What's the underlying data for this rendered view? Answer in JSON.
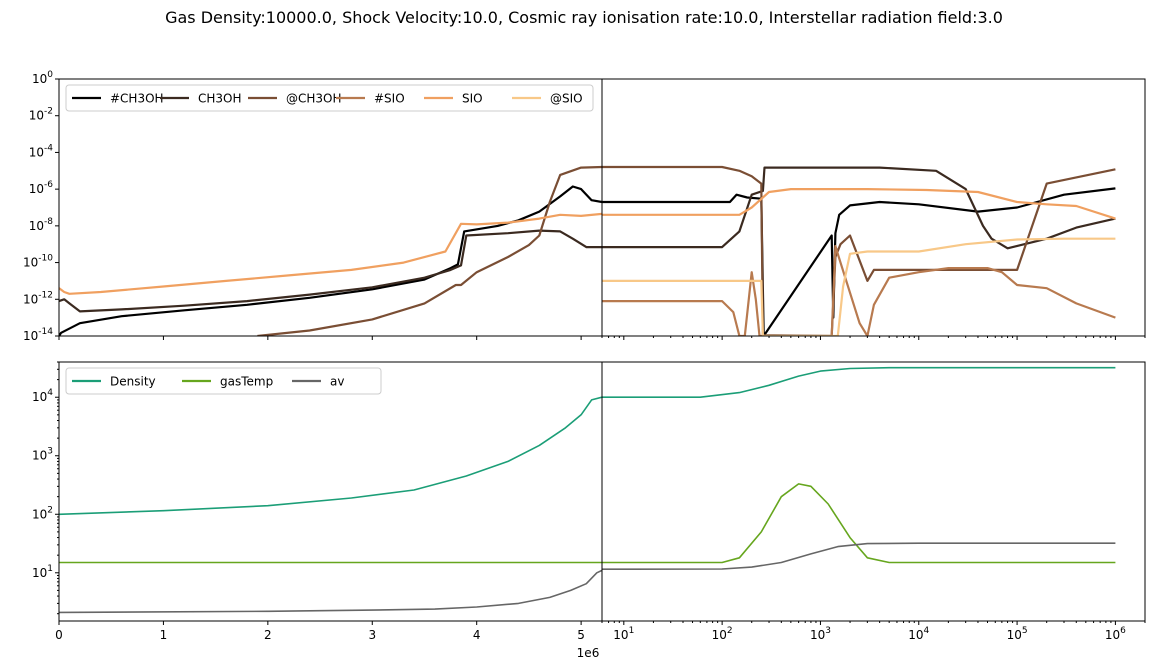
{
  "suptitle": "Gas Density:10000.0, Shock Velocity:10.0, Cosmic ray ionisation rate:10.0, Interstellar radiation field:3.0",
  "chart_data": [
    {
      "panel": "top-left",
      "type": "line",
      "xscale": "linear",
      "yscale": "log",
      "xlim": [
        0,
        5200000.0
      ],
      "ylim": [
        1e-14,
        1
      ],
      "yticks": [
        "10^0",
        "10^-2",
        "10^-4",
        "10^-6",
        "10^-8",
        "10^-10",
        "10^-12",
        "10^-14"
      ],
      "legend_placement": "top-left",
      "series": [
        {
          "name": "#CH3OH",
          "color": "#000000",
          "points": [
            [
              0,
              1e-14
            ],
            [
              0.02,
              1.5e-14
            ],
            [
              0.2,
              5e-14
            ],
            [
              0.6,
              1.2e-13
            ],
            [
              1.2,
              2.5e-13
            ],
            [
              1.8,
              5e-13
            ],
            [
              2.4,
              1.2e-12
            ],
            [
              3.0,
              3.5e-12
            ],
            [
              3.5,
              1.2e-11
            ],
            [
              3.75,
              5e-11
            ],
            [
              3.82,
              8e-11
            ],
            [
              3.88,
              5e-09
            ],
            [
              4.2,
              1e-08
            ],
            [
              4.4,
              2e-08
            ],
            [
              4.6,
              6e-08
            ],
            [
              4.8,
              4e-07
            ],
            [
              4.92,
              1.4e-06
            ],
            [
              5.0,
              1e-06
            ],
            [
              5.1,
              2.5e-07
            ],
            [
              5.2,
              2e-07
            ]
          ]
        },
        {
          "name": "CH3OH",
          "color": "#3b2a20",
          "points": [
            [
              0,
              8e-13
            ],
            [
              0.05,
              1e-12
            ],
            [
              0.1,
              6e-13
            ],
            [
              0.2,
              2.2e-13
            ],
            [
              0.6,
              2.8e-13
            ],
            [
              1.2,
              4.5e-13
            ],
            [
              1.8,
              8e-13
            ],
            [
              2.4,
              1.8e-12
            ],
            [
              3.0,
              4.5e-12
            ],
            [
              3.5,
              1.5e-11
            ],
            [
              3.75,
              4e-11
            ],
            [
              3.85,
              7e-11
            ],
            [
              3.9,
              3e-09
            ],
            [
              4.3,
              4e-09
            ],
            [
              4.6,
              5.5e-09
            ],
            [
              4.8,
              5e-09
            ],
            [
              4.92,
              2e-09
            ],
            [
              5.05,
              7e-10
            ],
            [
              5.2,
              7e-10
            ]
          ]
        },
        {
          "name": "@CH3OH",
          "color": "#7a4e34",
          "points": [
            [
              1.9,
              1e-14
            ],
            [
              2.4,
              2e-14
            ],
            [
              3.0,
              8e-14
            ],
            [
              3.5,
              6e-13
            ],
            [
              3.8,
              6e-12
            ],
            [
              3.85,
              6e-12
            ],
            [
              4.0,
              3e-11
            ],
            [
              4.3,
              2e-10
            ],
            [
              4.5,
              9e-10
            ],
            [
              4.6,
              3e-09
            ],
            [
              4.7,
              2e-07
            ],
            [
              4.8,
              6e-06
            ],
            [
              5.0,
              1.5e-05
            ],
            [
              5.2,
              1.6e-05
            ]
          ]
        },
        {
          "name": "#SIO",
          "color": "#b87a4f",
          "points": []
        },
        {
          "name": "SIO",
          "color": "#f0a060",
          "points": [
            [
              0,
              4e-12
            ],
            [
              0.05,
              2.5e-12
            ],
            [
              0.1,
              2e-12
            ],
            [
              0.4,
              2.5e-12
            ],
            [
              1.0,
              5e-12
            ],
            [
              1.6,
              1e-11
            ],
            [
              2.2,
              2e-11
            ],
            [
              2.8,
              4e-11
            ],
            [
              3.3,
              1e-10
            ],
            [
              3.7,
              4e-10
            ],
            [
              3.85,
              1.3e-08
            ],
            [
              4.0,
              1.2e-08
            ],
            [
              4.3,
              1.5e-08
            ],
            [
              4.6,
              2.5e-08
            ],
            [
              4.8,
              4e-08
            ],
            [
              5.0,
              3.5e-08
            ],
            [
              5.2,
              4.5e-08
            ]
          ]
        },
        {
          "name": "@SIO",
          "color": "#f8c888",
          "points": []
        }
      ]
    },
    {
      "panel": "top-right",
      "type": "line",
      "xscale": "log",
      "yscale": "log",
      "xlim": [
        6,
        2000000.0
      ],
      "ylim": [
        1e-14,
        1
      ],
      "series": [
        {
          "name": "#CH3OH",
          "color": "#000000",
          "points": [
            [
              6,
              2e-07
            ],
            [
              120,
              2e-07
            ],
            [
              140,
              5e-07
            ],
            [
              180,
              3.5e-07
            ],
            [
              250,
              3e-07
            ],
            [
              265,
              1e-14
            ],
            [
              1300,
              3e-09
            ],
            [
              1350,
              1e-13
            ],
            [
              1420,
              4e-09
            ],
            [
              1550,
              4e-08
            ],
            [
              2000,
              1.3e-07
            ],
            [
              4000,
              2e-07
            ],
            [
              10000,
              1.5e-07
            ],
            [
              40000,
              6e-08
            ],
            [
              100000,
              1e-07
            ],
            [
              300000,
              5e-07
            ],
            [
              1000000,
              1.1e-06
            ]
          ]
        },
        {
          "name": "CH3OH",
          "color": "#3b2a20",
          "points": [
            [
              6,
              7e-10
            ],
            [
              100,
              7e-10
            ],
            [
              150,
              5e-09
            ],
            [
              200,
              5e-07
            ],
            [
              260,
              8e-07
            ],
            [
              270,
              1.5e-05
            ],
            [
              4000,
              1.5e-05
            ],
            [
              15000,
              1e-05
            ],
            [
              30000,
              1e-06
            ],
            [
              45000,
              1e-08
            ],
            [
              55000,
              2e-09
            ],
            [
              80000,
              6e-10
            ],
            [
              200000,
              2e-09
            ],
            [
              400000,
              8e-09
            ],
            [
              1000000,
              2.5e-08
            ]
          ]
        },
        {
          "name": "@CH3OH",
          "color": "#7a4e34",
          "points": [
            [
              6,
              1.6e-05
            ],
            [
              100,
              1.6e-05
            ],
            [
              150,
              1e-05
            ],
            [
              200,
              5e-06
            ],
            [
              250,
              2e-06
            ],
            [
              260,
              1.1e-14
            ],
            [
              1300,
              1e-14
            ],
            [
              1420,
              2e-10
            ],
            [
              1600,
              1e-09
            ],
            [
              2000,
              3e-09
            ],
            [
              3000,
              1e-11
            ],
            [
              3500,
              4e-11
            ],
            [
              100000,
              4e-11
            ],
            [
              200000,
              2e-06
            ],
            [
              1000000,
              1.2e-05
            ]
          ]
        },
        {
          "name": "#SIO",
          "color": "#b87a4f",
          "points": [
            [
              6,
              8e-13
            ],
            [
              100,
              8e-13
            ],
            [
              130,
              2e-13
            ],
            [
              150,
              1e-14
            ],
            [
              170,
              1e-14
            ],
            [
              200,
              3e-11
            ],
            [
              220,
              1e-12
            ],
            [
              240,
              1e-14
            ],
            [
              1300,
              1e-14
            ],
            [
              1420,
              8e-10
            ],
            [
              1600,
              1e-10
            ],
            [
              2500,
              5e-14
            ],
            [
              3000,
              1e-14
            ],
            [
              3500,
              5e-13
            ],
            [
              5000,
              1.5e-11
            ],
            [
              10000,
              3e-11
            ],
            [
              20000,
              5e-11
            ],
            [
              50000,
              5e-11
            ],
            [
              70000,
              3e-11
            ],
            [
              100000,
              6e-12
            ],
            [
              200000,
              4e-12
            ],
            [
              400000,
              6e-13
            ],
            [
              1000000,
              1e-13
            ]
          ]
        },
        {
          "name": "SIO",
          "color": "#f0a060",
          "points": [
            [
              6,
              4e-08
            ],
            [
              150,
              4e-08
            ],
            [
              200,
              1e-07
            ],
            [
              300,
              7e-07
            ],
            [
              500,
              1e-06
            ],
            [
              3000,
              1e-06
            ],
            [
              12000,
              9e-07
            ],
            [
              40000,
              7e-07
            ],
            [
              100000,
              2e-07
            ],
            [
              200000,
              1.5e-07
            ],
            [
              400000,
              1.2e-07
            ],
            [
              1000000,
              2.5e-08
            ]
          ]
        },
        {
          "name": "@SIO",
          "color": "#f8c888",
          "points": [
            [
              6,
              1e-11
            ],
            [
              250,
              1e-11
            ],
            [
              260,
              1e-14
            ],
            [
              1500,
              1e-14
            ],
            [
              1700,
              5e-12
            ],
            [
              2000,
              3e-10
            ],
            [
              3000,
              4e-10
            ],
            [
              10000,
              4e-10
            ],
            [
              30000,
              1e-09
            ],
            [
              100000,
              1.8e-09
            ],
            [
              300000,
              2e-09
            ],
            [
              1000000,
              2e-09
            ]
          ]
        }
      ]
    },
    {
      "panel": "bottom-left",
      "type": "line",
      "xscale": "linear",
      "yscale": "log",
      "xlim": [
        0,
        5200000.0
      ],
      "ylim": [
        1.5,
        40000
      ],
      "xticks": [
        "0",
        "1",
        "2",
        "3",
        "4",
        "5"
      ],
      "x_offset_label": "1e6",
      "yticks": [
        "10^4",
        "10^3",
        "10^2",
        "10^1"
      ],
      "legend_placement": "top-left",
      "series": [
        {
          "name": "Density",
          "color": "#1b9e77",
          "points": [
            [
              0,
              100
            ],
            [
              1.0,
              115
            ],
            [
              2.0,
              140
            ],
            [
              2.8,
              190
            ],
            [
              3.4,
              260
            ],
            [
              3.9,
              450
            ],
            [
              4.3,
              800
            ],
            [
              4.6,
              1500
            ],
            [
              4.85,
              3000
            ],
            [
              5.0,
              5000
            ],
            [
              5.1,
              9000
            ],
            [
              5.2,
              10000.0
            ]
          ]
        },
        {
          "name": "gasTemp",
          "color": "#66a61e",
          "points": [
            [
              0,
              15
            ],
            [
              5.2,
              15
            ]
          ]
        },
        {
          "name": "av",
          "color": "#666666",
          "points": [
            [
              0,
              2.1
            ],
            [
              2.0,
              2.2
            ],
            [
              3.0,
              2.3
            ],
            [
              3.6,
              2.4
            ],
            [
              4.0,
              2.6
            ],
            [
              4.4,
              3.0
            ],
            [
              4.7,
              3.8
            ],
            [
              4.9,
              5.0
            ],
            [
              5.05,
              6.5
            ],
            [
              5.15,
              10
            ],
            [
              5.2,
              11
            ]
          ]
        }
      ]
    },
    {
      "panel": "bottom-right",
      "type": "line",
      "xscale": "log",
      "yscale": "log",
      "xlim": [
        6,
        2000000.0
      ],
      "ylim": [
        1.5,
        40000
      ],
      "xticks": [
        "10^1",
        "10^2",
        "10^3",
        "10^4",
        "10^5",
        "10^6"
      ],
      "series": [
        {
          "name": "Density",
          "color": "#1b9e77",
          "points": [
            [
              6,
              10000.0
            ],
            [
              60,
              10000.0
            ],
            [
              150,
              12000.0
            ],
            [
              300,
              16000.0
            ],
            [
              600,
              23000.0
            ],
            [
              1000,
              28000.0
            ],
            [
              2000,
              31000.0
            ],
            [
              5000,
              32000.0
            ],
            [
              1000000,
              32000.0
            ]
          ]
        },
        {
          "name": "gasTemp",
          "color": "#66a61e",
          "points": [
            [
              6,
              15
            ],
            [
              100,
              15
            ],
            [
              150,
              18
            ],
            [
              250,
              50
            ],
            [
              400,
              200
            ],
            [
              600,
              330
            ],
            [
              800,
              300
            ],
            [
              1200,
              150
            ],
            [
              2000,
              40
            ],
            [
              3000,
              18
            ],
            [
              5000,
              15
            ],
            [
              1000000,
              15
            ]
          ]
        },
        {
          "name": "av",
          "color": "#666666",
          "points": [
            [
              6,
              11.5
            ],
            [
              100,
              11.6
            ],
            [
              200,
              12.5
            ],
            [
              400,
              15
            ],
            [
              800,
              21
            ],
            [
              1500,
              28
            ],
            [
              3000,
              31.5
            ],
            [
              10000,
              32
            ],
            [
              1000000,
              32
            ]
          ]
        }
      ]
    }
  ]
}
